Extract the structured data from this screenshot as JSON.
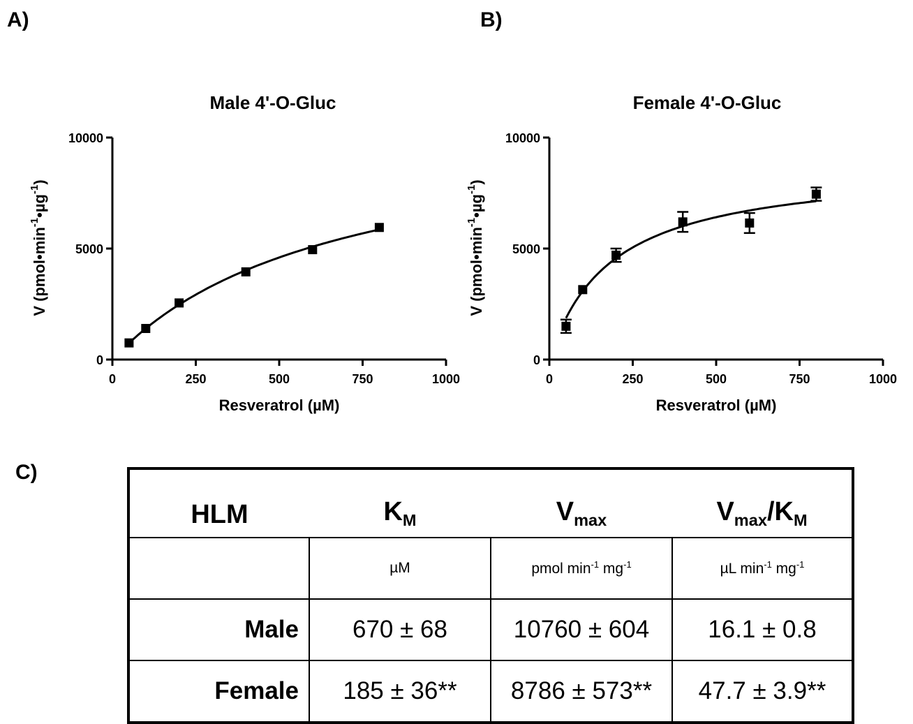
{
  "panels": {
    "a": "A)",
    "b": "B)",
    "c": "C)"
  },
  "chart_data": [
    {
      "type": "scatter",
      "title": "Male 4'-O-Gluc",
      "xlabel": "Resveratrol (µM)",
      "ylabel_parts": [
        "V (pmol•min",
        "-1",
        "•µg",
        "-1",
        ")"
      ],
      "xlim": [
        0,
        1000
      ],
      "ylim": [
        0,
        10000
      ],
      "xticks": [
        0,
        250,
        500,
        750,
        1000
      ],
      "yticks": [
        0,
        5000,
        10000
      ],
      "x": [
        50,
        100,
        200,
        400,
        600,
        800
      ],
      "y": [
        750,
        1400,
        2550,
        3950,
        4950,
        5950
      ],
      "yerr": [
        0,
        0,
        0,
        0,
        0,
        0
      ],
      "fit": {
        "model": "michaelis-menten",
        "Vmax": 10760,
        "Km": 670
      },
      "grid": false
    },
    {
      "type": "scatter",
      "title": "Female 4'-O-Gluc",
      "xlabel": "Resveratrol (µM)",
      "ylabel_parts": [
        "V (pmol•min",
        "-1",
        "•µg",
        "-1",
        ")"
      ],
      "xlim": [
        0,
        1000
      ],
      "ylim": [
        0,
        10000
      ],
      "xticks": [
        0,
        250,
        500,
        750,
        1000
      ],
      "yticks": [
        0,
        5000,
        10000
      ],
      "x": [
        50,
        100,
        200,
        400,
        600,
        800
      ],
      "y": [
        1500,
        3150,
        4700,
        6200,
        6150,
        7450
      ],
      "yerr": [
        300,
        0,
        300,
        450,
        450,
        300
      ],
      "fit": {
        "model": "michaelis-menten",
        "Vmax": 8786,
        "Km": 185
      },
      "grid": false
    }
  ],
  "table": {
    "header": {
      "hlm": "HLM",
      "km_main": "K",
      "km_sub": "M",
      "vmax_main": "V",
      "vmax_sub": "max",
      "eff_v": "V",
      "eff_vsub": "max",
      "eff_slash": "/K",
      "eff_ksub": "M"
    },
    "units": {
      "km": "µM",
      "vmax": {
        "a": "pmol min",
        "b": "-1",
        "c": " mg",
        "d": "-1"
      },
      "eff": {
        "a": "µL min",
        "b": "-1",
        "c": " mg",
        "d": "-1"
      }
    },
    "rows": [
      {
        "label": "Male",
        "km": "670 ± 68",
        "vmax": "10760 ± 604",
        "eff": "16.1 ± 0.8"
      },
      {
        "label": "Female",
        "km": "185 ± 36**",
        "vmax": "8786 ± 573**",
        "eff": "47.7 ± 3.9**"
      }
    ]
  }
}
